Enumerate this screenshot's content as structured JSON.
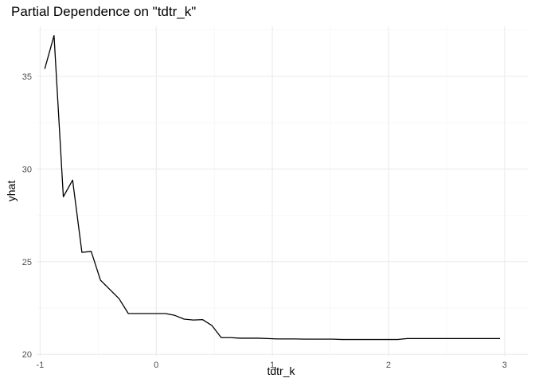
{
  "chart_data": {
    "type": "line",
    "title": "Partial Dependence on \"tdtr_k\"",
    "xlabel": "tdtr_k",
    "ylabel": "yhat",
    "xlim": [
      -1.03,
      3.2
    ],
    "ylim": [
      19.88,
      37.7
    ],
    "xticks": [
      -1,
      0,
      1,
      2,
      3
    ],
    "xtick_labels": [
      "-1",
      "0",
      "1",
      "2",
      "3"
    ],
    "yticks": [
      20,
      25,
      30,
      35
    ],
    "ytick_labels": [
      "20",
      "25",
      "30",
      "35"
    ],
    "grid": true,
    "legend": "none",
    "series": [
      {
        "color": "#000000",
        "x": [
          -0.96,
          -0.88,
          -0.8,
          -0.72,
          -0.64,
          -0.56,
          -0.48,
          -0.4,
          -0.32,
          -0.24,
          -0.16,
          -0.08,
          0.0,
          0.08,
          0.16,
          0.24,
          0.32,
          0.4,
          0.48,
          0.56,
          0.64,
          0.72,
          0.8,
          0.88,
          0.96,
          1.04,
          1.12,
          1.2,
          1.28,
          1.36,
          1.44,
          1.52,
          1.6,
          1.68,
          1.76,
          1.84,
          1.92,
          2.0,
          2.08,
          2.16,
          2.24,
          2.32,
          2.4,
          2.48,
          2.56,
          2.64,
          2.72,
          2.8,
          2.88,
          2.96
        ],
        "y": [
          35.4,
          37.2,
          28.5,
          29.4,
          25.5,
          25.55,
          24.0,
          23.5,
          23.0,
          22.2,
          22.2,
          22.2,
          22.2,
          22.2,
          22.1,
          21.9,
          21.85,
          21.87,
          21.55,
          20.9,
          20.9,
          20.87,
          20.87,
          20.87,
          20.85,
          20.83,
          20.83,
          20.83,
          20.82,
          20.82,
          20.82,
          20.82,
          20.8,
          20.8,
          20.8,
          20.8,
          20.8,
          20.8,
          20.8,
          20.85,
          20.85,
          20.85,
          20.85,
          20.85,
          20.85,
          20.85,
          20.85,
          20.85,
          20.85,
          20.85
        ]
      }
    ]
  }
}
